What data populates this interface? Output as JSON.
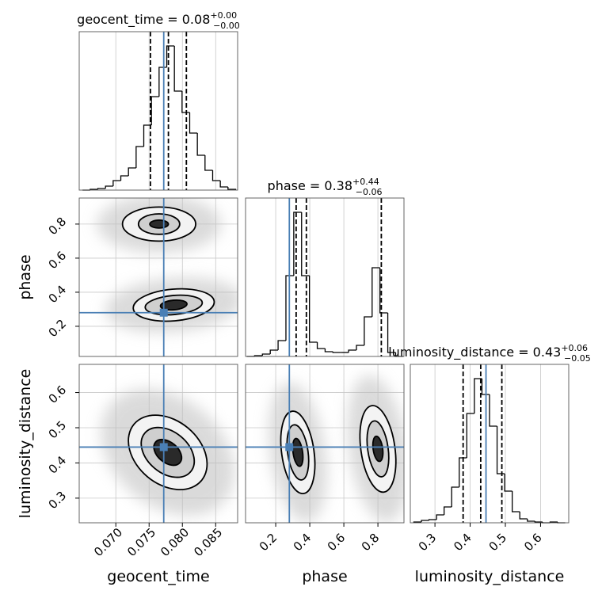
{
  "chart_data": {
    "type": "corner",
    "truth_color": "#4a7fb5",
    "grid": true,
    "hist_ylim": [
      0,
      200
    ],
    "level_fills": [
      "#f3f3f3",
      "#cfcfcf",
      "#2a2a2a"
    ],
    "parameters": [
      {
        "name": "geocent_time",
        "title": {
          "text": "geocent_time = 0.08",
          "upper": "+0.00",
          "lower": "−0.00"
        },
        "lim": [
          0.0645,
          0.0883
        ],
        "ticks": [
          {
            "value": 0.07,
            "label": "0.070"
          },
          {
            "value": 0.075,
            "label": "0.075"
          },
          {
            "value": 0.08,
            "label": "0.080"
          },
          {
            "value": 0.085,
            "label": "0.085"
          }
        ],
        "truth": 0.0772,
        "quantiles": [
          0.0752,
          0.0779,
          0.0806
        ],
        "bins": [
          0.065,
          0.06615,
          0.0673,
          0.06845,
          0.0696,
          0.07075,
          0.0719,
          0.07305,
          0.0742,
          0.07535,
          0.0765,
          0.07765,
          0.0788,
          0.07995,
          0.0811,
          0.08225,
          0.0834,
          0.08455,
          0.0857,
          0.08685,
          0.088
        ],
        "counts": [
          0,
          1,
          2,
          5,
          12,
          18,
          28,
          55,
          82,
          118,
          155,
          182,
          125,
          98,
          72,
          44,
          25,
          12,
          4,
          1
        ]
      },
      {
        "name": "phase",
        "title": {
          "text": "phase = 0.38",
          "upper": "+0.44",
          "lower": "−0.06"
        },
        "lim": [
          0.023,
          0.953
        ],
        "ticks": [
          0.2,
          0.4,
          0.6,
          0.8
        ],
        "truth": 0.28,
        "quantiles": [
          0.32,
          0.38,
          0.82
        ],
        "bins": [
          0.03,
          0.076,
          0.122,
          0.168,
          0.214,
          0.26,
          0.306,
          0.352,
          0.398,
          0.444,
          0.49,
          0.536,
          0.582,
          0.628,
          0.674,
          0.72,
          0.766,
          0.812,
          0.858,
          0.904,
          0.95
        ],
        "counts": [
          0,
          1,
          3,
          8,
          20,
          102,
          182,
          102,
          18,
          10,
          6,
          5,
          5,
          8,
          14,
          50,
          112,
          55,
          5,
          0
        ]
      },
      {
        "name": "luminosity_distance",
        "title": {
          "text": "luminosity_distance = 0.43",
          "upper": "+0.06",
          "lower": "−0.05"
        },
        "lim": [
          0.23,
          0.68
        ],
        "ticks": [
          0.3,
          0.4,
          0.5,
          0.6
        ],
        "truth": 0.445,
        "quantiles": [
          0.38,
          0.43,
          0.49
        ],
        "bins": [
          0.24,
          0.2615,
          0.283,
          0.3045,
          0.326,
          0.3475,
          0.369,
          0.3905,
          0.412,
          0.4335,
          0.455,
          0.4765,
          0.498,
          0.5195,
          0.541,
          0.5625,
          0.584,
          0.6055,
          0.627,
          0.6485,
          0.67
        ],
        "counts": [
          1,
          3,
          4,
          10,
          20,
          45,
          82,
          138,
          182,
          162,
          122,
          62,
          40,
          14,
          5,
          2,
          1,
          0,
          1,
          0
        ]
      }
    ],
    "pairs": [
      {
        "x": 0,
        "y": 1,
        "blobs": [
          {
            "x": 0.0765,
            "y": 0.8,
            "angle": 0,
            "levels": [
              [
                0.0055,
                0.1
              ],
              [
                0.0031,
                0.06
              ],
              [
                0.0014,
                0.023
              ]
            ]
          },
          {
            "x": 0.0787,
            "y": 0.325,
            "angle": -5,
            "levels": [
              [
                0.0061,
                0.093
              ],
              [
                0.0043,
                0.056
              ],
              [
                0.002,
                0.028
              ]
            ]
          }
        ]
      },
      {
        "x": 0,
        "y": 2,
        "blobs": [
          {
            "x": 0.0778,
            "y": 0.43,
            "angle": 40,
            "levels": [
              [
                0.0066,
                0.09
              ],
              [
                0.0045,
                0.0585
              ],
              [
                0.0024,
                0.029
              ]
            ]
          }
        ]
      },
      {
        "x": 1,
        "y": 2,
        "blobs": [
          {
            "x": 0.33,
            "y": 0.43,
            "angle": -8,
            "levels": [
              [
                0.095,
                0.118
              ],
              [
                0.06,
                0.079
              ],
              [
                0.028,
                0.04
              ]
            ]
          },
          {
            "x": 0.8,
            "y": 0.44,
            "angle": -8,
            "levels": [
              [
                0.1,
                0.124
              ],
              [
                0.06,
                0.08
              ],
              [
                0.028,
                0.036
              ]
            ]
          }
        ]
      }
    ]
  }
}
